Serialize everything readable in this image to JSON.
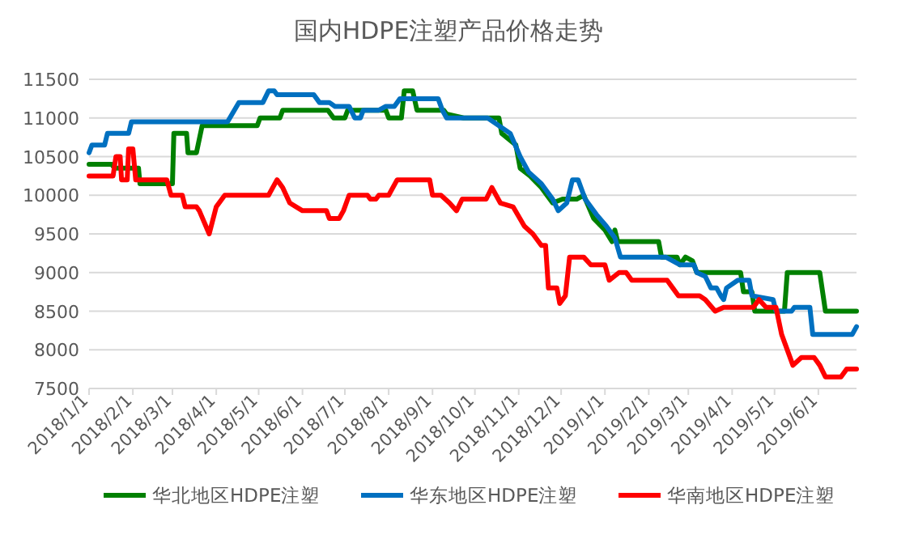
{
  "chart_data": {
    "type": "line",
    "title": "国内HDPE注塑产品价格走势",
    "xlim": [
      "2018-01-01",
      "2019-06-28"
    ],
    "xticks": [
      {
        "value": "2018-01-01",
        "label": "2018/1/1"
      },
      {
        "value": "2018-02-01",
        "label": "2018/2/1"
      },
      {
        "value": "2018-03-01",
        "label": "2018/3/1"
      },
      {
        "value": "2018-04-01",
        "label": "2018/4/1"
      },
      {
        "value": "2018-05-01",
        "label": "2018/5/1"
      },
      {
        "value": "2018-06-01",
        "label": "2018/6/1"
      },
      {
        "value": "2018-07-01",
        "label": "2018/7/1"
      },
      {
        "value": "2018-08-01",
        "label": "2018/8/1"
      },
      {
        "value": "2018-09-01",
        "label": "2018/9/1"
      },
      {
        "value": "2018-10-01",
        "label": "2018/10/1"
      },
      {
        "value": "2018-11-01",
        "label": "2018/11/1"
      },
      {
        "value": "2018-12-01",
        "label": "2018/12/1"
      },
      {
        "value": "2019-01-01",
        "label": "2019/1/1"
      },
      {
        "value": "2019-02-01",
        "label": "2019/2/1"
      },
      {
        "value": "2019-03-01",
        "label": "2019/3/1"
      },
      {
        "value": "2019-04-01",
        "label": "2019/4/1"
      },
      {
        "value": "2019-05-01",
        "label": "2019/5/1"
      },
      {
        "value": "2019-06-01",
        "label": "2019/6/1"
      }
    ],
    "ylim": [
      7500,
      11500
    ],
    "yticks": [
      7500,
      8000,
      8500,
      9000,
      9500,
      10000,
      10500,
      11000,
      11500
    ],
    "grid": "y",
    "legend": "bottom",
    "marker": "none",
    "line_style": "solid",
    "series": [
      {
        "name": "华北地区HDPE注塑",
        "color": "#008000",
        "x": [
          "2018-01-01",
          "2018-01-17",
          "2018-01-19",
          "2018-02-05",
          "2018-02-06",
          "2018-03-01",
          "2018-03-02",
          "2018-03-11",
          "2018-03-12",
          "2018-03-18",
          "2018-03-22",
          "2018-04-30",
          "2018-05-02",
          "2018-05-16",
          "2018-05-18",
          "2018-06-19",
          "2018-06-23",
          "2018-07-01",
          "2018-07-03",
          "2018-07-30",
          "2018-08-01",
          "2018-08-10",
          "2018-08-12",
          "2018-08-18",
          "2018-08-21",
          "2018-09-09",
          "2018-09-11",
          "2018-09-23",
          "2018-10-18",
          "2018-10-20",
          "2018-10-30",
          "2018-11-02",
          "2018-11-09",
          "2018-11-17",
          "2018-11-25",
          "2018-12-02",
          "2018-12-12",
          "2018-12-17",
          "2018-12-24",
          "2019-01-01",
          "2019-01-06",
          "2019-01-08",
          "2019-01-10",
          "2019-02-08",
          "2019-02-10",
          "2019-02-21",
          "2019-02-23",
          "2019-02-27",
          "2019-03-04",
          "2019-03-07",
          "2019-04-07",
          "2019-04-09",
          "2019-04-15",
          "2019-04-17",
          "2019-05-08",
          "2019-05-10",
          "2019-06-02",
          "2019-06-06",
          "2019-06-28"
        ],
        "values": [
          10400,
          10400,
          10350,
          10350,
          10150,
          10150,
          10800,
          10800,
          10550,
          10550,
          10900,
          10900,
          11000,
          11000,
          11100,
          11100,
          11000,
          11000,
          11100,
          11100,
          11000,
          11000,
          11350,
          11350,
          11100,
          11100,
          11050,
          11000,
          11000,
          10800,
          10650,
          10350,
          10250,
          10100,
          9900,
          9950,
          9950,
          10000,
          9700,
          9550,
          9400,
          9550,
          9400,
          9400,
          9200,
          9200,
          9100,
          9200,
          9150,
          9000,
          9000,
          8750,
          8750,
          8500,
          8500,
          9000,
          9000,
          8500,
          8500
        ]
      },
      {
        "name": "华东地区HDPE注塑",
        "color": "#0070c0",
        "x": [
          "2018-01-01",
          "2018-01-03",
          "2018-01-12",
          "2018-01-14",
          "2018-01-29",
          "2018-01-31",
          "2018-04-09",
          "2018-04-17",
          "2018-05-04",
          "2018-05-08",
          "2018-05-12",
          "2018-05-14",
          "2018-06-09",
          "2018-06-13",
          "2018-06-20",
          "2018-06-24",
          "2018-07-04",
          "2018-07-08",
          "2018-07-12",
          "2018-07-14",
          "2018-07-25",
          "2018-07-30",
          "2018-08-05",
          "2018-08-09",
          "2018-09-05",
          "2018-09-08",
          "2018-09-11",
          "2018-10-10",
          "2018-10-26",
          "2018-11-02",
          "2018-11-08",
          "2018-11-17",
          "2018-11-25",
          "2018-11-29",
          "2018-12-05",
          "2018-12-09",
          "2018-12-13",
          "2018-12-18",
          "2018-12-26",
          "2019-01-02",
          "2019-01-08",
          "2019-01-12",
          "2019-02-13",
          "2019-02-23",
          "2019-03-05",
          "2019-03-07",
          "2019-03-13",
          "2019-03-17",
          "2019-03-21",
          "2019-03-24",
          "2019-03-26",
          "2019-03-28",
          "2019-04-05",
          "2019-04-13",
          "2019-04-15",
          "2019-04-30",
          "2019-05-02",
          "2019-05-13",
          "2019-05-15",
          "2019-05-26",
          "2019-05-28",
          "2019-06-25",
          "2019-06-28"
        ],
        "values": [
          10550,
          10650,
          10650,
          10800,
          10800,
          10950,
          10950,
          11200,
          11200,
          11350,
          11350,
          11300,
          11300,
          11200,
          11200,
          11150,
          11150,
          11000,
          11000,
          11100,
          11100,
          11150,
          11150,
          11250,
          11250,
          11100,
          11000,
          11000,
          10800,
          10500,
          10300,
          10150,
          9950,
          9800,
          9900,
          10200,
          10200,
          9950,
          9750,
          9600,
          9450,
          9200,
          9200,
          9100,
          9100,
          9000,
          8950,
          8800,
          8800,
          8700,
          8650,
          8800,
          8900,
          8900,
          8700,
          8650,
          8500,
          8500,
          8550,
          8550,
          8200,
          8200,
          8300
        ]
      },
      {
        "name": "华南地区HDPE注塑",
        "color": "#ff0000",
        "x": [
          "2018-01-01",
          "2018-01-18",
          "2018-01-20",
          "2018-01-23",
          "2018-01-24",
          "2018-01-28",
          "2018-01-29",
          "2018-02-01",
          "2018-02-03",
          "2018-02-25",
          "2018-02-28",
          "2018-03-08",
          "2018-03-10",
          "2018-03-18",
          "2018-03-20",
          "2018-03-27",
          "2018-04-01",
          "2018-04-07",
          "2018-05-08",
          "2018-05-14",
          "2018-05-18",
          "2018-05-23",
          "2018-06-01",
          "2018-06-18",
          "2018-06-20",
          "2018-06-27",
          "2018-06-30",
          "2018-07-04",
          "2018-07-17",
          "2018-07-19",
          "2018-07-23",
          "2018-07-25",
          "2018-08-01",
          "2018-08-07",
          "2018-08-30",
          "2018-09-01",
          "2018-09-07",
          "2018-09-13",
          "2018-09-18",
          "2018-09-22",
          "2018-10-09",
          "2018-10-13",
          "2018-10-19",
          "2018-10-28",
          "2018-11-05",
          "2018-11-11",
          "2018-11-17",
          "2018-11-20",
          "2018-11-22",
          "2018-11-28",
          "2018-11-30",
          "2018-12-04",
          "2018-12-07",
          "2018-12-17",
          "2018-12-22",
          "2019-01-01",
          "2019-01-04",
          "2019-01-11",
          "2019-01-16",
          "2019-01-20",
          "2019-02-14",
          "2019-02-18",
          "2019-02-22",
          "2019-03-09",
          "2019-03-13",
          "2019-03-20",
          "2019-03-26",
          "2019-04-16",
          "2019-04-20",
          "2019-04-25",
          "2019-05-02",
          "2019-05-06",
          "2019-05-14",
          "2019-05-20",
          "2019-05-29",
          "2019-06-02",
          "2019-06-06",
          "2019-06-17",
          "2019-06-21",
          "2019-06-28"
        ],
        "values": [
          10250,
          10250,
          10500,
          10500,
          10200,
          10200,
          10600,
          10600,
          10200,
          10200,
          10000,
          10000,
          9850,
          9850,
          9800,
          9500,
          9850,
          10000,
          10000,
          10200,
          10100,
          9900,
          9800,
          9800,
          9700,
          9700,
          9800,
          10000,
          10000,
          9950,
          9950,
          10000,
          10000,
          10200,
          10200,
          10000,
          10000,
          9900,
          9800,
          9950,
          9950,
          10100,
          9900,
          9850,
          9600,
          9500,
          9350,
          9350,
          8800,
          8800,
          8600,
          8700,
          9200,
          9200,
          9100,
          9100,
          8900,
          9000,
          9000,
          8900,
          8900,
          8800,
          8700,
          8700,
          8650,
          8500,
          8550,
          8550,
          8650,
          8550,
          8550,
          8200,
          7800,
          7900,
          7900,
          7800,
          7650,
          7650,
          7750,
          7750
        ]
      }
    ]
  }
}
